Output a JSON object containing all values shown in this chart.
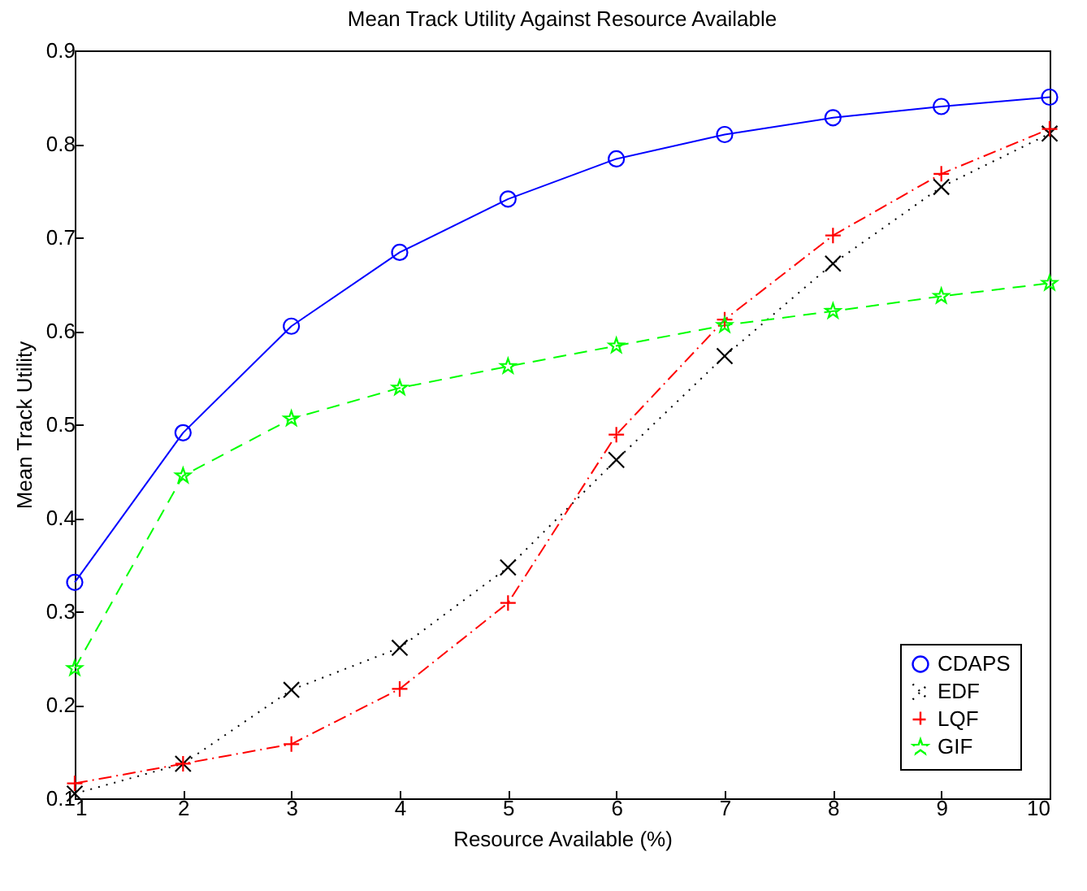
{
  "chart_data": {
    "type": "line",
    "title": "Mean Track Utility Against Resource Available",
    "xlabel": "Resource Available (%)",
    "ylabel": "Mean Track Utility",
    "x": [
      1,
      2,
      3,
      4,
      5,
      6,
      7,
      8,
      9,
      10
    ],
    "series": [
      {
        "name": "CDAPS",
        "color": "#0000ff",
        "marker": "circle",
        "line_style": "solid",
        "values": [
          0.331,
          0.491,
          0.605,
          0.684,
          0.741,
          0.784,
          0.81,
          0.828,
          0.84,
          0.85
        ]
      },
      {
        "name": "EDF",
        "color": "#000000",
        "marker": "cross",
        "line_style": "dotted",
        "values": [
          0.105,
          0.137,
          0.216,
          0.261,
          0.347,
          0.462,
          0.573,
          0.672,
          0.754,
          0.811
        ]
      },
      {
        "name": "LQF",
        "color": "#ff0000",
        "marker": "plus",
        "line_style": "dashdot",
        "values": [
          0.116,
          0.137,
          0.158,
          0.217,
          0.309,
          0.489,
          0.612,
          0.702,
          0.768,
          0.816
        ]
      },
      {
        "name": "GIF",
        "color": "#00ff00",
        "marker": "star",
        "line_style": "dashed",
        "values": [
          0.239,
          0.445,
          0.506,
          0.539,
          0.562,
          0.584,
          0.606,
          0.621,
          0.637,
          0.651
        ]
      }
    ],
    "xlim": [
      1,
      10
    ],
    "xticks": [
      1,
      2,
      3,
      4,
      5,
      6,
      7,
      8,
      9,
      10
    ],
    "ylim": [
      0.1,
      0.9
    ],
    "yticks": [
      0.1,
      0.2,
      0.3,
      0.4,
      0.5,
      0.6,
      0.7,
      0.8,
      0.9
    ],
    "grid": false,
    "legend": "bottom right"
  }
}
